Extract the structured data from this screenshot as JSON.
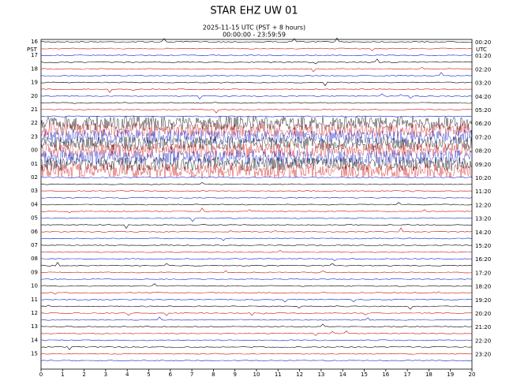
{
  "chart_data": {
    "type": "helicorder",
    "title": "STAR EHZ UW 01",
    "subtitle": [
      "2025-11-15 UTC (PST + 8 hours)",
      "00:00:00 - 23:59:59"
    ],
    "left_axis_label": "PST",
    "right_axis_label": "UTC",
    "left_labels": [
      "16",
      "17",
      "18",
      "19",
      "20",
      "21",
      "22",
      "23",
      "00",
      "01",
      "02",
      "03",
      "04",
      "05",
      "06",
      "07",
      "08",
      "09",
      "10",
      "11",
      "12",
      "13",
      "14",
      "15"
    ],
    "right_labels": [
      "00:20",
      "01:20",
      "02:20",
      "03:20",
      "04:20",
      "05:20",
      "06:20",
      "07:20",
      "08:20",
      "09:20",
      "10:20",
      "11:20",
      "12:20",
      "13:20",
      "14:20",
      "15:20",
      "16:20",
      "17:20",
      "18:20",
      "19:20",
      "20:20",
      "21:20",
      "22:20",
      "23:20"
    ],
    "xlim": [
      0,
      20
    ],
    "xticks": [
      0,
      1,
      2,
      3,
      4,
      5,
      6,
      7,
      8,
      9,
      10,
      11,
      12,
      13,
      14,
      15,
      16,
      17,
      18,
      19,
      20
    ],
    "trace_colors": [
      "#000000",
      "#d01010",
      "#1020d0"
    ]
  }
}
